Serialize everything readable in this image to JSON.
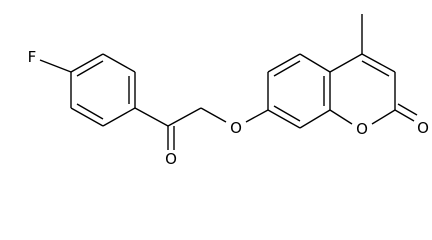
{
  "atoms": [
    {
      "label": "F"
    },
    {
      "label": "O"
    },
    {
      "label": "O"
    },
    {
      "label": "O"
    },
    {
      "label": "O"
    }
  ]
}
